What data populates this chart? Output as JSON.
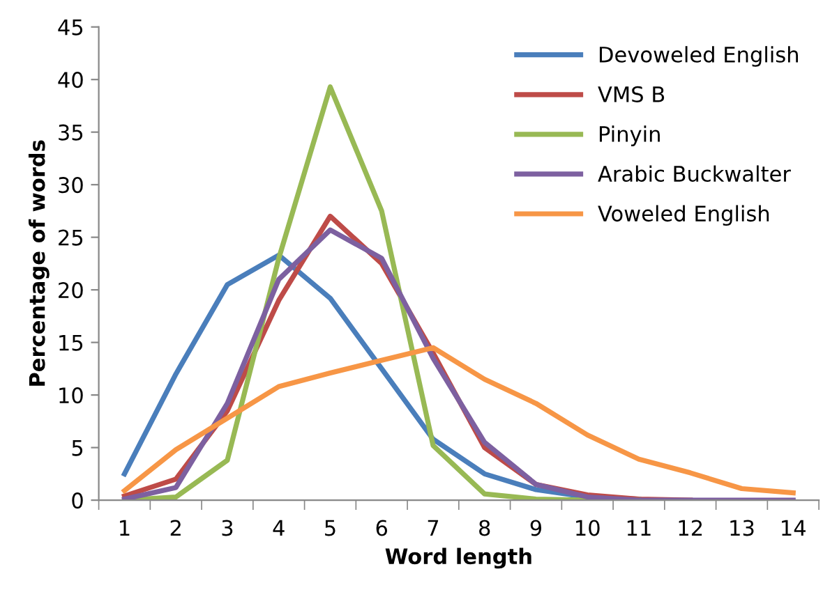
{
  "chart_data": {
    "type": "line",
    "xlabel": "Word length",
    "ylabel": "Percentage of words",
    "categories": [
      "1",
      "2",
      "3",
      "4",
      "5",
      "6",
      "7",
      "8",
      "9",
      "10",
      "11",
      "12",
      "13",
      "14"
    ],
    "ylim": [
      0,
      45
    ],
    "yticks": [
      0,
      5,
      10,
      15,
      20,
      25,
      30,
      35,
      40,
      45
    ],
    "grid": false,
    "legend": "top right",
    "marker": "none",
    "line_style": "solid",
    "series": [
      {
        "name": "Devoweled English",
        "color": "#4a7ebb",
        "values": [
          2.5,
          12,
          20.5,
          23.3,
          19.2,
          12.5,
          5.8,
          2.5,
          1.0,
          0.3,
          0.1,
          null,
          null,
          null
        ]
      },
      {
        "name": "VMS B",
        "color": "#be4b48",
        "values": [
          0.4,
          2.0,
          8.5,
          19,
          27,
          22.5,
          14,
          5,
          1.5,
          0.5,
          0.1,
          0,
          null,
          null
        ]
      },
      {
        "name": "Pinyin",
        "color": "#98b954",
        "values": [
          0,
          0.3,
          3.8,
          23,
          39.3,
          27.5,
          5.2,
          0.6,
          0.1,
          0,
          0,
          null,
          null,
          null
        ]
      },
      {
        "name": "Arabic Buckwalter",
        "color": "#7d60a0",
        "values": [
          0.1,
          1.2,
          9.2,
          21,
          25.7,
          23,
          13.5,
          5.5,
          1.5,
          0.3,
          0,
          0,
          0,
          0
        ]
      },
      {
        "name": "Voweled English",
        "color": "#f79646",
        "values": [
          0.9,
          4.8,
          7.8,
          10.8,
          12.1,
          13.3,
          14.5,
          11.5,
          9.2,
          6.2,
          3.9,
          2.6,
          1.1,
          0.7
        ]
      }
    ]
  }
}
